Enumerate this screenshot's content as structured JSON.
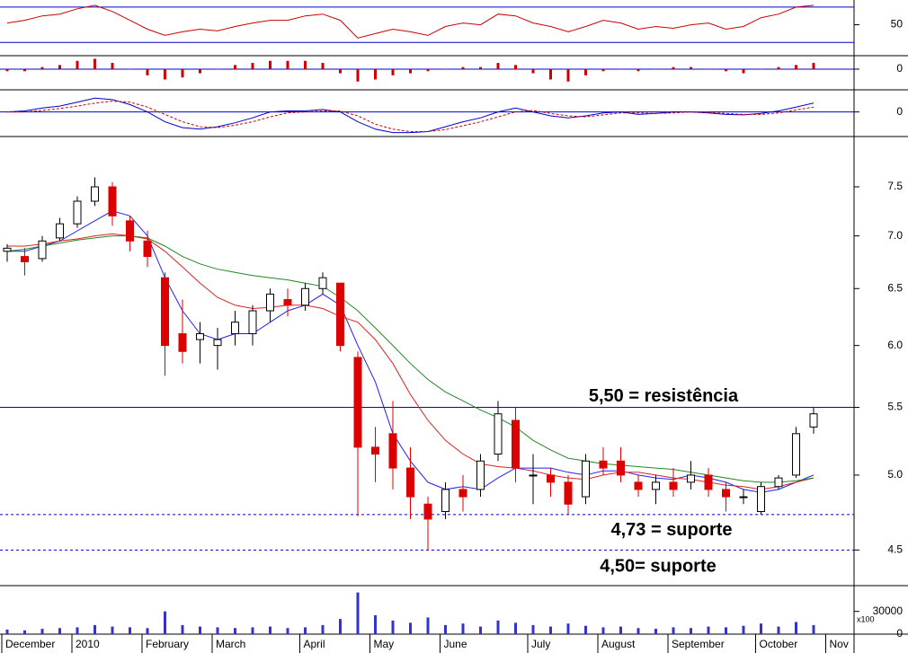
{
  "chart_data": [
    {
      "type": "line",
      "ylim": [
        15,
        78
      ],
      "yticks": [
        50
      ],
      "levels": [
        30,
        70
      ],
      "level_color": "#0000cc",
      "series": [
        {
          "color": "#cc0000",
          "values": [
            52,
            55,
            60,
            62,
            68,
            72,
            65,
            55,
            45,
            38,
            42,
            45,
            43,
            48,
            52,
            55,
            55,
            60,
            62,
            55,
            35,
            40,
            45,
            42,
            38,
            48,
            52,
            50,
            62,
            60,
            52,
            48,
            42,
            48,
            55,
            52,
            45,
            48,
            46,
            50,
            52,
            45,
            48,
            58,
            62,
            70,
            72,
            null
          ]
        }
      ]
    },
    {
      "type": "bar",
      "ylim": [
        -0.1,
        0.065
      ],
      "yticks": [
        0
      ],
      "color": "#cc0000",
      "values": [
        -0.01,
        -0.01,
        0.01,
        0.02,
        0.04,
        0.05,
        0.03,
        0.0,
        -0.03,
        -0.05,
        -0.04,
        -0.02,
        0.0,
        0.02,
        0.03,
        0.04,
        0.04,
        0.04,
        0.03,
        -0.02,
        -0.06,
        -0.05,
        -0.03,
        -0.02,
        -0.01,
        0.0,
        0.01,
        0.01,
        0.03,
        0.02,
        -0.02,
        -0.05,
        -0.06,
        -0.03,
        -0.01,
        0.0,
        -0.01,
        0.0,
        0.01,
        0.01,
        0.0,
        -0.01,
        -0.02,
        0.0,
        0.01,
        0.02,
        0.03,
        null
      ]
    },
    {
      "type": "line",
      "ylim": [
        -0.5,
        0.45
      ],
      "yticks": [
        0
      ],
      "zero_line_color": "#0000cc",
      "series": [
        {
          "color": "#0000cc",
          "values": [
            0.0,
            0.02,
            0.08,
            0.12,
            0.2,
            0.28,
            0.25,
            0.15,
            0.0,
            -0.2,
            -0.32,
            -0.35,
            -0.3,
            -0.22,
            -0.12,
            0.0,
            0.02,
            0.02,
            0.05,
            0.0,
            -0.2,
            -0.35,
            -0.42,
            -0.42,
            -0.4,
            -0.3,
            -0.2,
            -0.12,
            0.0,
            0.08,
            0.0,
            -0.08,
            -0.12,
            -0.08,
            -0.02,
            0.0,
            -0.05,
            -0.03,
            0.0,
            0.0,
            -0.02,
            -0.05,
            -0.06,
            -0.03,
            0.02,
            0.1,
            0.18,
            null
          ]
        },
        {
          "color": "#cc0000",
          "dashed": true,
          "values": [
            0.0,
            0.0,
            0.03,
            0.07,
            0.12,
            0.18,
            0.22,
            0.2,
            0.1,
            -0.05,
            -0.2,
            -0.3,
            -0.32,
            -0.27,
            -0.2,
            -0.1,
            -0.02,
            0.0,
            0.02,
            0.02,
            -0.08,
            -0.25,
            -0.35,
            -0.4,
            -0.4,
            -0.36,
            -0.28,
            -0.2,
            -0.1,
            0.0,
            0.03,
            -0.03,
            -0.08,
            -0.1,
            -0.06,
            -0.02,
            -0.02,
            -0.03,
            -0.02,
            0.0,
            -0.01,
            -0.03,
            -0.05,
            -0.05,
            -0.02,
            0.04,
            0.1,
            null
          ]
        }
      ]
    },
    {
      "type": "candlestick",
      "log_scale": true,
      "ylim": [
        4.28,
        8.05
      ],
      "yticks": [
        4.5,
        {
          "value": 5,
          "label": "5.0"
        },
        5.5,
        {
          "value": 6,
          "label": "6.0"
        },
        6.5,
        {
          "value": 7,
          "label": "7.0"
        },
        7.5
      ],
      "up_color": "#ffffff",
      "down_color": "#dd0000",
      "open": [
        6.85,
        6.8,
        6.78,
        6.98,
        7.12,
        7.35,
        7.5,
        7.15,
        6.95,
        6.6,
        6.1,
        6.05,
        6.0,
        6.1,
        6.1,
        6.3,
        6.4,
        6.35,
        6.5,
        6.55,
        5.9,
        5.2,
        5.3,
        5.05,
        4.8,
        4.75,
        4.9,
        4.9,
        5.15,
        5.4,
        5.0,
        5.0,
        4.95,
        4.85,
        5.1,
        5.1,
        4.95,
        4.9,
        4.95,
        4.95,
        5.0,
        4.9,
        4.85,
        4.75,
        4.92,
        5.0,
        5.35,
        null
      ],
      "high": [
        6.92,
        6.88,
        7.0,
        7.18,
        7.4,
        7.6,
        7.55,
        7.2,
        7.05,
        6.65,
        6.4,
        6.2,
        6.15,
        6.3,
        6.35,
        6.5,
        6.5,
        6.55,
        6.65,
        6.55,
        5.95,
        5.35,
        5.55,
        5.2,
        4.85,
        4.95,
        5.0,
        5.15,
        5.55,
        5.5,
        5.15,
        5.05,
        5.0,
        5.15,
        5.2,
        5.2,
        5.0,
        5.0,
        5.05,
        5.1,
        5.05,
        4.95,
        4.9,
        4.95,
        5.0,
        5.35,
        5.5,
        null
      ],
      "low": [
        6.75,
        6.62,
        6.75,
        6.95,
        7.08,
        7.3,
        7.1,
        6.85,
        6.7,
        5.75,
        5.85,
        5.85,
        5.8,
        6.0,
        6.0,
        6.2,
        6.25,
        6.3,
        6.45,
        5.95,
        4.72,
        4.95,
        4.9,
        4.7,
        4.5,
        4.7,
        4.75,
        4.85,
        5.1,
        4.95,
        4.8,
        4.85,
        4.73,
        4.8,
        5.0,
        4.95,
        4.85,
        4.8,
        4.85,
        4.9,
        4.85,
        4.75,
        4.8,
        4.73,
        4.9,
        4.98,
        5.3,
        null
      ],
      "close": [
        6.88,
        6.75,
        6.95,
        7.12,
        7.35,
        7.5,
        7.2,
        6.95,
        6.8,
        6.0,
        5.95,
        6.1,
        6.05,
        6.2,
        6.3,
        6.45,
        6.35,
        6.5,
        6.6,
        6.0,
        5.2,
        5.15,
        5.05,
        4.85,
        4.7,
        4.9,
        4.85,
        5.1,
        5.45,
        5.05,
        5.0,
        4.95,
        4.8,
        5.1,
        5.05,
        5.0,
        4.9,
        4.95,
        4.9,
        5.0,
        4.9,
        4.85,
        4.85,
        4.92,
        4.98,
        5.3,
        5.45,
        null
      ],
      "series": [
        {
          "color": "#2222ee",
          "values": [
            6.85,
            6.85,
            6.9,
            6.95,
            7.05,
            7.15,
            7.25,
            7.2,
            7.0,
            6.6,
            6.3,
            6.1,
            6.05,
            6.1,
            6.1,
            6.2,
            6.3,
            6.35,
            6.45,
            6.35,
            6.0,
            5.7,
            5.3,
            5.1,
            4.95,
            4.9,
            4.92,
            4.9,
            4.98,
            5.05,
            5.05,
            5.05,
            5.02,
            5.0,
            5.03,
            5.03,
            5.0,
            4.98,
            4.97,
            5.0,
            4.98,
            4.95,
            4.9,
            4.88,
            4.9,
            4.95,
            5.0,
            null
          ]
        },
        {
          "color": "#dd2222",
          "values": [
            6.9,
            6.9,
            6.92,
            6.95,
            6.97,
            7.0,
            7.02,
            7.0,
            6.97,
            6.85,
            6.7,
            6.55,
            6.42,
            6.35,
            6.32,
            6.33,
            6.35,
            6.35,
            6.32,
            6.25,
            6.2,
            6.05,
            5.85,
            5.6,
            5.4,
            5.25,
            5.15,
            5.08,
            5.06,
            5.05,
            5.03,
            5.0,
            4.98,
            4.97,
            5.0,
            5.02,
            5.02,
            5.0,
            4.98,
            4.97,
            4.95,
            4.93,
            4.92,
            4.9,
            4.92,
            4.95,
            4.98,
            null
          ]
        },
        {
          "color": "#228822",
          "values": [
            6.85,
            6.87,
            6.9,
            6.93,
            6.96,
            6.98,
            7.0,
            7.0,
            6.98,
            6.9,
            6.8,
            6.73,
            6.68,
            6.65,
            6.62,
            6.6,
            6.58,
            6.55,
            6.52,
            6.42,
            6.3,
            6.15,
            6.0,
            5.85,
            5.72,
            5.62,
            5.55,
            5.48,
            5.42,
            5.35,
            5.25,
            5.18,
            5.12,
            5.1,
            5.08,
            5.07,
            5.06,
            5.05,
            5.04,
            5.02,
            5.0,
            4.98,
            4.96,
            4.95,
            4.95,
            4.96,
            4.98,
            null
          ]
        }
      ],
      "annotations": [
        {
          "label": "5,50 = resistência",
          "value": 5.5,
          "style": "solid"
        },
        {
          "label": "4,73 = suporte",
          "value": 4.73,
          "style": "dashed"
        },
        {
          "label": "4,50= suporte",
          "value": 4.5,
          "style": "dashed"
        }
      ],
      "annotation_color": "#0000cc"
    },
    {
      "type": "bar",
      "ylim": [
        0,
        64000
      ],
      "yticks": [
        30000,
        0
      ],
      "unit_label": "x100",
      "color": "#3333cc",
      "categories": [
        "December",
        null,
        null,
        null,
        "2010",
        null,
        null,
        null,
        "February",
        null,
        null,
        null,
        "March",
        null,
        null,
        null,
        null,
        "April",
        null,
        null,
        null,
        "May",
        null,
        null,
        null,
        "June",
        null,
        null,
        null,
        null,
        "July",
        null,
        null,
        null,
        "August",
        null,
        null,
        null,
        "September",
        null,
        null,
        null,
        null,
        "October",
        null,
        null,
        null,
        "Nov"
      ],
      "values": [
        6000,
        5000,
        7000,
        8000,
        9000,
        12000,
        10000,
        9000,
        8000,
        30000,
        12000,
        10000,
        9000,
        8000,
        9000,
        10000,
        8000,
        9000,
        12000,
        20000,
        55000,
        25000,
        18000,
        15000,
        22000,
        12000,
        14000,
        10000,
        18000,
        15000,
        12000,
        10000,
        14000,
        11000,
        9000,
        10000,
        8000,
        7000,
        9000,
        8000,
        10000,
        9000,
        11000,
        14000,
        10000,
        16000,
        12000,
        null
      ]
    }
  ]
}
